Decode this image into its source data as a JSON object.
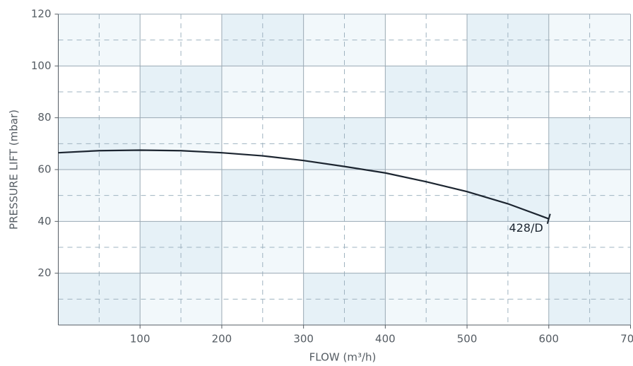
{
  "chart_data": {
    "type": "line",
    "xlabel": "FLOW (m³/h)",
    "ylabel": "PRESSURE LIFT (mbar)",
    "x": [
      0,
      50,
      100,
      150,
      200,
      250,
      300,
      350,
      400,
      450,
      500,
      550,
      600
    ],
    "series": [
      {
        "name": "428/D",
        "color": "#1c2530",
        "values": [
          66.5,
          67.3,
          67.5,
          67.3,
          66.5,
          65.3,
          63.5,
          61.2,
          58.7,
          55.3,
          51.5,
          46.8,
          41
        ]
      }
    ],
    "xlim": [
      0,
      700
    ],
    "xticks": [
      100,
      200,
      300,
      400,
      500,
      600,
      700
    ],
    "ylim": [
      0,
      120
    ],
    "yticks": [
      20,
      40,
      60,
      80,
      100,
      120
    ],
    "grid": true
  }
}
